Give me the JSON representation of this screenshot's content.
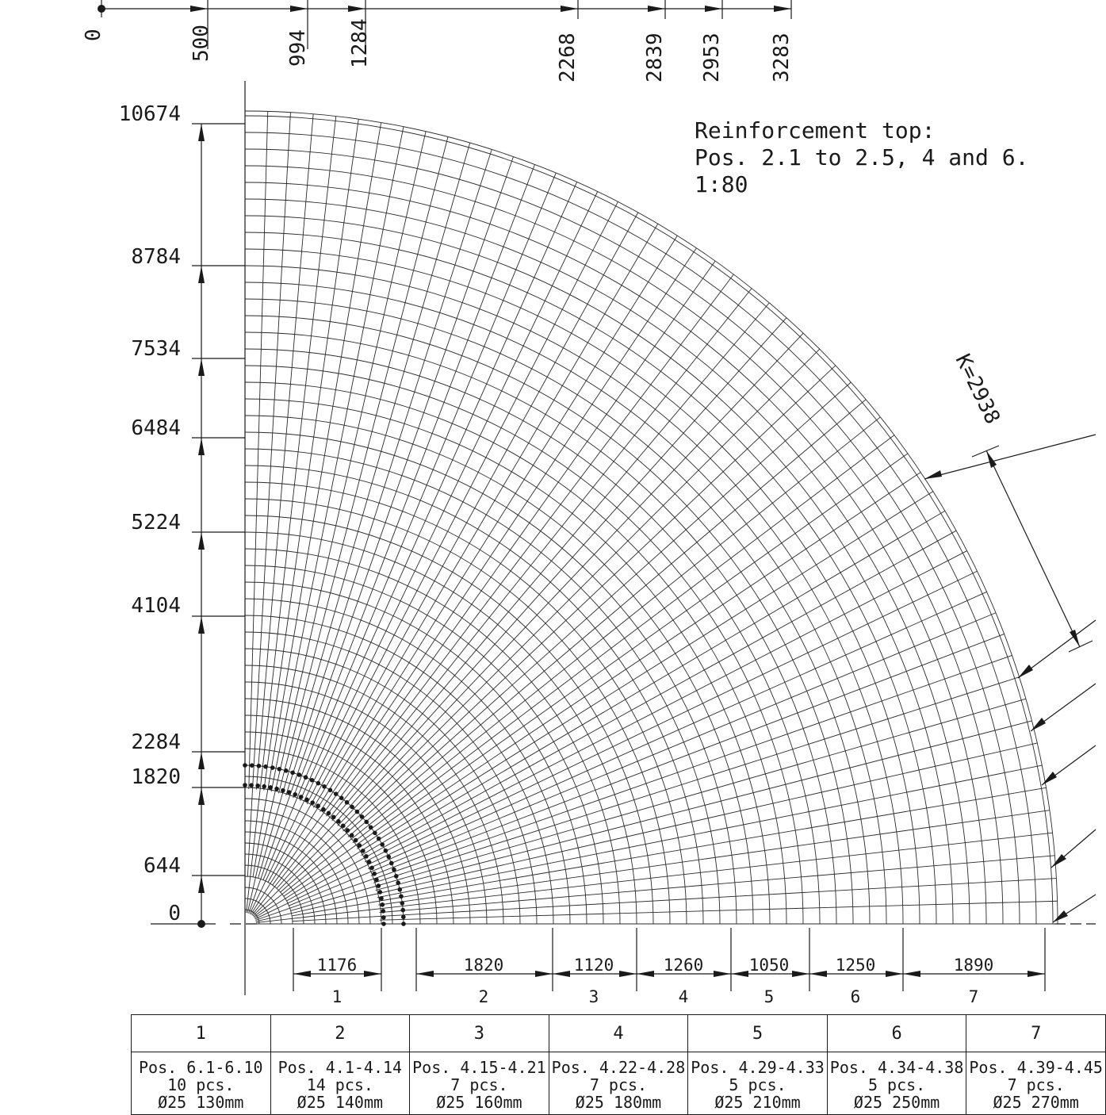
{
  "note": {
    "line1": "Reinforcement top:",
    "line2": "Pos. 2.1 to 2.5, 4 and 6.",
    "scale": "1:80"
  },
  "top_dimensions": [
    "0",
    "500",
    "994",
    "1284",
    "2268",
    "2839",
    "2953",
    "3283"
  ],
  "left_dimensions": [
    "10674",
    "8784",
    "7534",
    "6484",
    "5224",
    "4104",
    "2284",
    "1820",
    "644",
    "0"
  ],
  "k_label": "K=2938",
  "zones": [
    {
      "width": "1176",
      "number": "1"
    },
    {
      "width": "1820",
      "number": "2"
    },
    {
      "width": "1120",
      "number": "3"
    },
    {
      "width": "1260",
      "number": "4"
    },
    {
      "width": "1050",
      "number": "5"
    },
    {
      "width": "1250",
      "number": "6"
    },
    {
      "width": "1890",
      "number": "7"
    }
  ],
  "table": {
    "headers": [
      "1",
      "2",
      "3",
      "4",
      "5",
      "6",
      "7"
    ],
    "rows": [
      {
        "pos": "Pos. 6.1-6.10",
        "qty": "10 pcs.",
        "bar": "Ø25 130mm"
      },
      {
        "pos": "Pos. 4.1-4.14",
        "qty": "14 pcs.",
        "bar": "Ø25 140mm"
      },
      {
        "pos": "Pos. 4.15-4.21",
        "qty": "7 pcs.",
        "bar": "Ø25 160mm"
      },
      {
        "pos": "Pos. 4.22-4.28",
        "qty": "7 pcs.",
        "bar": "Ø25 180mm"
      },
      {
        "pos": "Pos. 4.29-4.33",
        "qty": "5 pcs.",
        "bar": "Ø25 210mm"
      },
      {
        "pos": "Pos. 4.34-4.38",
        "qty": "5 pcs.",
        "bar": "Ø25 250mm"
      },
      {
        "pos": "Pos. 4.39-4.45",
        "qty": "7 pcs.",
        "bar": "Ø25 270mm"
      }
    ]
  }
}
